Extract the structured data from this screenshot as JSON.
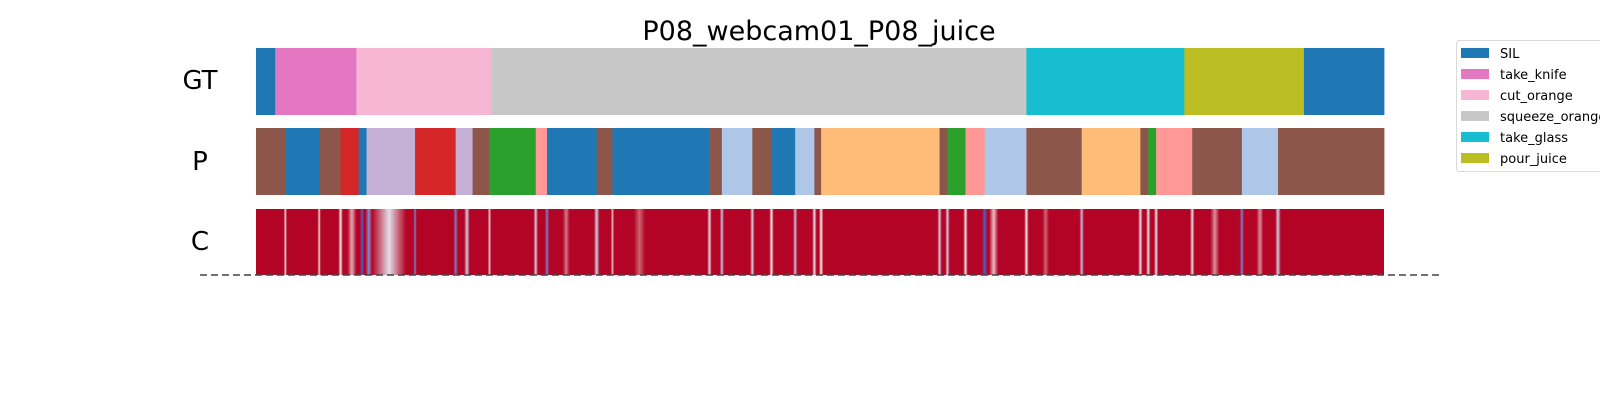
{
  "chart_data": {
    "type": "segmentation",
    "title": "P08_webcam01_P08_juice",
    "x_range": [
      0,
      1
    ],
    "rows": [
      {
        "label": "GT",
        "segments": [
          {
            "start": 0.0,
            "end": 0.017,
            "class": "SIL"
          },
          {
            "start": 0.017,
            "end": 0.089,
            "class": "take_knife"
          },
          {
            "start": 0.089,
            "end": 0.209,
            "class": "cut_orange"
          },
          {
            "start": 0.209,
            "end": 0.683,
            "class": "squeeze_orange"
          },
          {
            "start": 0.683,
            "end": 0.823,
            "class": "take_glass"
          },
          {
            "start": 0.823,
            "end": 0.929,
            "class": "pour_juice"
          },
          {
            "start": 0.929,
            "end": 1.0,
            "class": "SIL"
          }
        ]
      },
      {
        "label": "P",
        "segments": [
          {
            "start": 0.0,
            "end": 0.026,
            "class": "c_brown"
          },
          {
            "start": 0.026,
            "end": 0.056,
            "class": "SIL"
          },
          {
            "start": 0.056,
            "end": 0.075,
            "class": "c_brown"
          },
          {
            "start": 0.075,
            "end": 0.091,
            "class": "c_red"
          },
          {
            "start": 0.091,
            "end": 0.098,
            "class": "SIL"
          },
          {
            "start": 0.098,
            "end": 0.141,
            "class": "c_purple"
          },
          {
            "start": 0.141,
            "end": 0.177,
            "class": "c_red"
          },
          {
            "start": 0.177,
            "end": 0.192,
            "class": "c_purple"
          },
          {
            "start": 0.192,
            "end": 0.207,
            "class": "c_brown"
          },
          {
            "start": 0.207,
            "end": 0.248,
            "class": "c_green"
          },
          {
            "start": 0.248,
            "end": 0.258,
            "class": "c_pink"
          },
          {
            "start": 0.258,
            "end": 0.302,
            "class": "SIL"
          },
          {
            "start": 0.302,
            "end": 0.316,
            "class": "c_brown"
          },
          {
            "start": 0.316,
            "end": 0.402,
            "class": "SIL"
          },
          {
            "start": 0.402,
            "end": 0.413,
            "class": "c_brown"
          },
          {
            "start": 0.413,
            "end": 0.44,
            "class": "c_lightblue"
          },
          {
            "start": 0.44,
            "end": 0.457,
            "class": "c_brown"
          },
          {
            "start": 0.457,
            "end": 0.478,
            "class": "SIL"
          },
          {
            "start": 0.478,
            "end": 0.495,
            "class": "c_lightblue"
          },
          {
            "start": 0.495,
            "end": 0.501,
            "class": "c_brown"
          },
          {
            "start": 0.501,
            "end": 0.606,
            "class": "c_orange"
          },
          {
            "start": 0.606,
            "end": 0.613,
            "class": "c_brown"
          },
          {
            "start": 0.613,
            "end": 0.629,
            "class": "c_green"
          },
          {
            "start": 0.629,
            "end": 0.646,
            "class": "c_pink"
          },
          {
            "start": 0.646,
            "end": 0.683,
            "class": "c_lightblue"
          },
          {
            "start": 0.683,
            "end": 0.732,
            "class": "c_brown"
          },
          {
            "start": 0.732,
            "end": 0.784,
            "class": "c_orange"
          },
          {
            "start": 0.784,
            "end": 0.791,
            "class": "c_brown"
          },
          {
            "start": 0.791,
            "end": 0.798,
            "class": "c_green"
          },
          {
            "start": 0.798,
            "end": 0.83,
            "class": "c_pink"
          },
          {
            "start": 0.83,
            "end": 0.874,
            "class": "c_brown"
          },
          {
            "start": 0.874,
            "end": 0.906,
            "class": "c_lightblue"
          },
          {
            "start": 0.906,
            "end": 1.0,
            "class": "c_brown"
          }
        ]
      },
      {
        "label": "C",
        "type": "confidence",
        "base_value": 1.0,
        "dips": [
          {
            "pos": 0.026,
            "width": 0.003,
            "value": 0.55
          },
          {
            "pos": 0.056,
            "width": 0.003,
            "value": 0.55
          },
          {
            "pos": 0.075,
            "width": 0.004,
            "value": 0.5
          },
          {
            "pos": 0.085,
            "width": 0.008,
            "value": 0.65
          },
          {
            "pos": 0.094,
            "width": 0.004,
            "value": 0.05
          },
          {
            "pos": 0.1,
            "width": 0.006,
            "value": 0.2
          },
          {
            "pos": 0.118,
            "width": 0.03,
            "value": 0.45
          },
          {
            "pos": 0.141,
            "width": 0.003,
            "value": 0.15
          },
          {
            "pos": 0.177,
            "width": 0.004,
            "value": 0.15
          },
          {
            "pos": 0.187,
            "width": 0.005,
            "value": 0.4
          },
          {
            "pos": 0.207,
            "width": 0.003,
            "value": 0.55
          },
          {
            "pos": 0.248,
            "width": 0.004,
            "value": 0.4
          },
          {
            "pos": 0.258,
            "width": 0.004,
            "value": 0.15
          },
          {
            "pos": 0.275,
            "width": 0.006,
            "value": 0.75
          },
          {
            "pos": 0.302,
            "width": 0.005,
            "value": 0.4
          },
          {
            "pos": 0.316,
            "width": 0.003,
            "value": 0.6
          },
          {
            "pos": 0.34,
            "width": 0.01,
            "value": 0.8
          },
          {
            "pos": 0.402,
            "width": 0.004,
            "value": 0.45
          },
          {
            "pos": 0.413,
            "width": 0.004,
            "value": 0.35
          },
          {
            "pos": 0.44,
            "width": 0.004,
            "value": 0.4
          },
          {
            "pos": 0.457,
            "width": 0.004,
            "value": 0.5
          },
          {
            "pos": 0.478,
            "width": 0.004,
            "value": 0.35
          },
          {
            "pos": 0.495,
            "width": 0.004,
            "value": 0.45
          },
          {
            "pos": 0.501,
            "width": 0.004,
            "value": 0.5
          },
          {
            "pos": 0.606,
            "width": 0.004,
            "value": 0.4
          },
          {
            "pos": 0.613,
            "width": 0.004,
            "value": 0.4
          },
          {
            "pos": 0.629,
            "width": 0.004,
            "value": 0.5
          },
          {
            "pos": 0.646,
            "width": 0.005,
            "value": 0.05
          },
          {
            "pos": 0.654,
            "width": 0.008,
            "value": 0.6
          },
          {
            "pos": 0.683,
            "width": 0.004,
            "value": 0.5
          },
          {
            "pos": 0.7,
            "width": 0.006,
            "value": 0.8
          },
          {
            "pos": 0.732,
            "width": 0.004,
            "value": 0.35
          },
          {
            "pos": 0.784,
            "width": 0.004,
            "value": 0.45
          },
          {
            "pos": 0.791,
            "width": 0.004,
            "value": 0.45
          },
          {
            "pos": 0.798,
            "width": 0.004,
            "value": 0.45
          },
          {
            "pos": 0.83,
            "width": 0.004,
            "value": 0.45
          },
          {
            "pos": 0.85,
            "width": 0.008,
            "value": 0.7
          },
          {
            "pos": 0.874,
            "width": 0.004,
            "value": 0.15
          },
          {
            "pos": 0.89,
            "width": 0.006,
            "value": 0.7
          },
          {
            "pos": 0.906,
            "width": 0.005,
            "value": 0.4
          }
        ]
      }
    ],
    "legend": {
      "placement": "right",
      "entries": [
        "SIL",
        "take_knife",
        "cut_orange",
        "squeeze_orange",
        "take_glass",
        "pour_juice"
      ]
    },
    "colors": {
      "SIL": "#1f77b4",
      "take_knife": "#e377c2",
      "cut_orange": "#f7b6d2",
      "squeeze_orange": "#c7c7c7",
      "take_glass": "#17becf",
      "pour_juice": "#bcbd22",
      "c_brown": "#8c564b",
      "c_red": "#d62728",
      "c_purple": "#c5b0d5",
      "c_green": "#2ca02c",
      "c_pink": "#ff9896",
      "c_lightblue": "#aec7e8",
      "c_orange": "#ffbb78",
      "conf_high": "#b40426",
      "conf_low": "#3b4cc0",
      "baseline": "#444444"
    }
  }
}
